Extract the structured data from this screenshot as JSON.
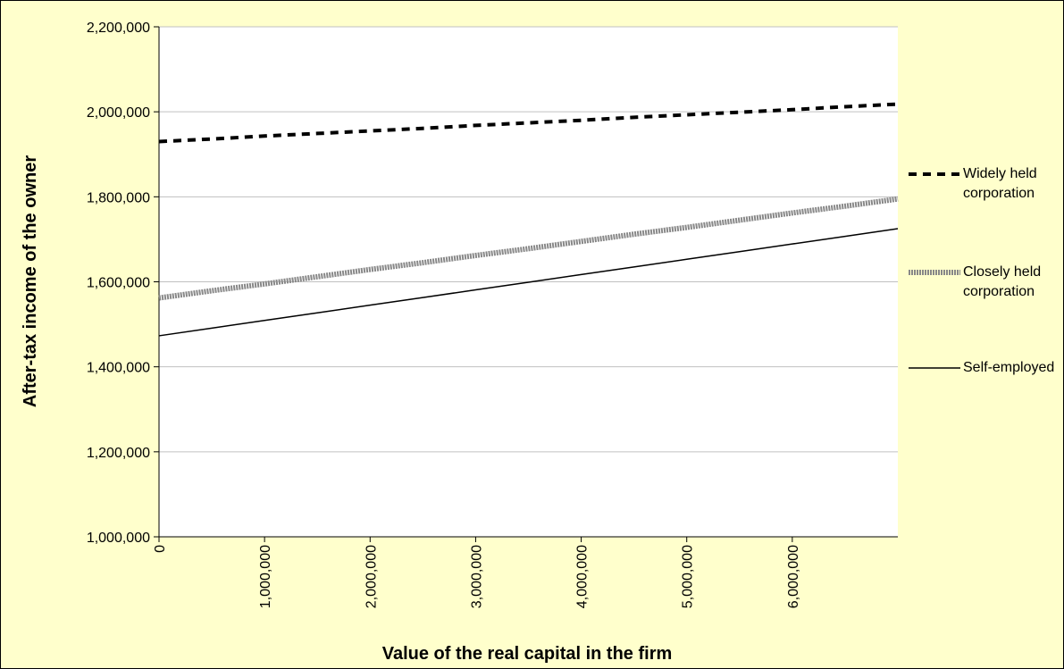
{
  "chart_data": {
    "type": "line",
    "x_label": "Value of the real capital in the firm",
    "y_label": "After-tax income of the owner",
    "x": [
      0,
      500000,
      1000000,
      1500000,
      2000000,
      2500000,
      3000000,
      3500000,
      4000000,
      4500000,
      5000000,
      5500000,
      6000000,
      6500000,
      7000000
    ],
    "series": [
      {
        "name": "Widely held corporation",
        "color": "#000000",
        "values": [
          1930000,
          1936000,
          1943000,
          1949000,
          1955000,
          1961000,
          1968000,
          1974000,
          1980000,
          1987000,
          1993000,
          1999000,
          2005000,
          2012000,
          2018000
        ]
      },
      {
        "name": "Closely held corporation",
        "color": "#888888",
        "values": [
          1562000,
          1579000,
          1595000,
          1612000,
          1629000,
          1645000,
          1662000,
          1678000,
          1695000,
          1712000,
          1728000,
          1745000,
          1762000,
          1778000,
          1795000
        ]
      },
      {
        "name": "Self-employed",
        "color": "#000000",
        "values": [
          1473000,
          1491000,
          1509000,
          1527000,
          1545000,
          1563000,
          1581000,
          1599000,
          1617000,
          1635000,
          1653000,
          1671000,
          1689000,
          1707000,
          1725000
        ]
      }
    ],
    "xlim": [
      0,
      7000000
    ],
    "xticks": [
      0,
      {
        "value": 1000000,
        "label": "1,000,000"
      },
      {
        "value": 2000000,
        "label": "2,000,000"
      },
      {
        "value": 3000000,
        "label": "3,000,000"
      },
      {
        "value": 4000000,
        "label": "4,000,000"
      },
      {
        "value": 5000000,
        "label": "5,000,000"
      },
      {
        "value": 6000000,
        "label": "6,000,000"
      }
    ],
    "ylim": [
      1000000,
      2200000
    ],
    "yticks": [
      {
        "value": 1000000,
        "label": "1,000,000"
      },
      {
        "value": 1200000,
        "label": "1,200,000"
      },
      {
        "value": 1400000,
        "label": "1,400,000"
      },
      {
        "value": 1600000,
        "label": "1,600,000"
      },
      {
        "value": 1800000,
        "label": "1,800,000"
      },
      {
        "value": 2000000,
        "label": "2,000,000"
      },
      {
        "value": 2200000,
        "label": "2,200,000"
      }
    ],
    "grid": true,
    "legend": "right"
  }
}
